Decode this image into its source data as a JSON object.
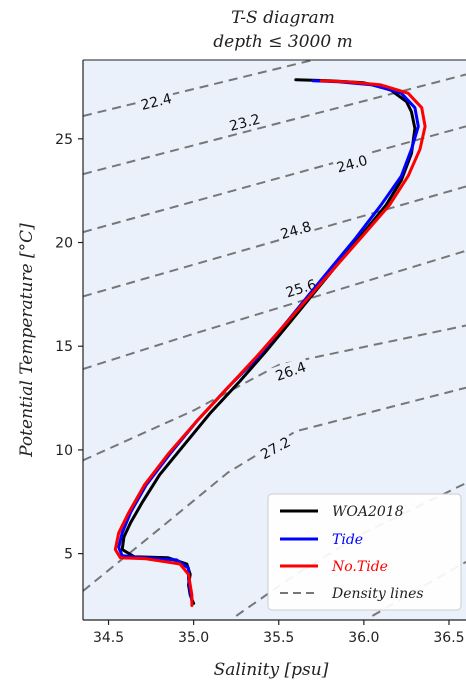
{
  "chart_data": {
    "type": "line",
    "title": "T-S diagram",
    "subtitle": "depth ≤ 3000 m",
    "xlabel": "Salinity [psu]",
    "ylabel": "Potential Temperature [°C]",
    "xlim": [
      34.35,
      36.6
    ],
    "ylim": [
      1.8,
      28.8
    ],
    "xticks": [
      "34.5",
      "35.0",
      "35.5",
      "36.0",
      "36.5"
    ],
    "yticks": [
      "5",
      "10",
      "15",
      "20",
      "25"
    ],
    "grid": false,
    "legend_position": "bottom-right",
    "series": [
      {
        "name": "WOA2018",
        "color": "#000000",
        "points": [
          [
            35.0,
            2.6
          ],
          [
            34.98,
            3.0
          ],
          [
            34.97,
            3.5
          ],
          [
            34.98,
            4.0
          ],
          [
            34.96,
            4.5
          ],
          [
            34.85,
            4.8
          ],
          [
            34.65,
            4.85
          ],
          [
            34.58,
            5.2
          ],
          [
            34.59,
            5.8
          ],
          [
            34.63,
            6.5
          ],
          [
            34.7,
            7.5
          ],
          [
            34.8,
            8.8
          ],
          [
            34.95,
            10.3
          ],
          [
            35.1,
            11.8
          ],
          [
            35.27,
            13.3
          ],
          [
            35.42,
            14.7
          ],
          [
            35.55,
            16.0
          ],
          [
            35.68,
            17.3
          ],
          [
            35.82,
            18.7
          ],
          [
            35.97,
            20.2
          ],
          [
            36.13,
            21.8
          ],
          [
            36.22,
            23.0
          ],
          [
            36.28,
            24.3
          ],
          [
            36.3,
            25.5
          ],
          [
            36.28,
            26.3
          ],
          [
            36.25,
            26.8
          ],
          [
            36.15,
            27.4
          ],
          [
            36.0,
            27.7
          ],
          [
            35.8,
            27.8
          ],
          [
            35.6,
            27.85
          ]
        ]
      },
      {
        "name": "Tide",
        "color": "#0000ff",
        "points": [
          [
            34.99,
            2.7
          ],
          [
            34.98,
            3.2
          ],
          [
            34.97,
            3.8
          ],
          [
            34.97,
            4.3
          ],
          [
            34.9,
            4.7
          ],
          [
            34.7,
            4.8
          ],
          [
            34.58,
            4.9
          ],
          [
            34.56,
            5.3
          ],
          [
            34.58,
            6.0
          ],
          [
            34.63,
            7.0
          ],
          [
            34.72,
            8.3
          ],
          [
            34.86,
            9.8
          ],
          [
            35.02,
            11.4
          ],
          [
            35.2,
            13.0
          ],
          [
            35.38,
            14.5
          ],
          [
            35.52,
            15.9
          ],
          [
            35.66,
            17.3
          ],
          [
            35.8,
            18.7
          ],
          [
            35.95,
            20.2
          ],
          [
            36.1,
            21.8
          ],
          [
            36.22,
            23.2
          ],
          [
            36.28,
            24.5
          ],
          [
            36.32,
            25.6
          ],
          [
            36.3,
            26.5
          ],
          [
            36.22,
            27.2
          ],
          [
            36.05,
            27.6
          ],
          [
            35.85,
            27.75
          ],
          [
            35.7,
            27.8
          ]
        ]
      },
      {
        "name": "No.Tide",
        "color": "#ff0000",
        "points": [
          [
            34.99,
            2.5
          ],
          [
            34.99,
            3.0
          ],
          [
            34.98,
            3.5
          ],
          [
            34.97,
            4.0
          ],
          [
            34.92,
            4.5
          ],
          [
            34.72,
            4.75
          ],
          [
            34.57,
            4.8
          ],
          [
            34.54,
            5.2
          ],
          [
            34.56,
            6.0
          ],
          [
            34.62,
            7.0
          ],
          [
            34.71,
            8.3
          ],
          [
            34.85,
            9.8
          ],
          [
            35.02,
            11.4
          ],
          [
            35.2,
            13.0
          ],
          [
            35.37,
            14.5
          ],
          [
            35.52,
            15.9
          ],
          [
            35.67,
            17.3
          ],
          [
            35.82,
            18.7
          ],
          [
            35.98,
            20.2
          ],
          [
            36.15,
            21.8
          ],
          [
            36.26,
            23.2
          ],
          [
            36.33,
            24.5
          ],
          [
            36.36,
            25.6
          ],
          [
            36.34,
            26.5
          ],
          [
            36.26,
            27.2
          ],
          [
            36.1,
            27.6
          ],
          [
            35.9,
            27.75
          ],
          [
            35.75,
            27.8
          ]
        ]
      }
    ],
    "density_lines": {
      "name": "Density lines",
      "color": "#777777",
      "lines": [
        {
          "label": "22.4",
          "points": [
            [
              34.35,
              26.1
            ],
            [
              36.6,
              30.6
            ]
          ],
          "label_at": [
            34.78,
            26.8
          ]
        },
        {
          "label": "23.2",
          "points": [
            [
              34.35,
              23.3
            ],
            [
              36.6,
              28.1
            ]
          ],
          "label_at": [
            35.3,
            25.8
          ]
        },
        {
          "label": "24.0",
          "points": [
            [
              34.35,
              20.5
            ],
            [
              36.6,
              25.6
            ]
          ],
          "label_at": [
            35.93,
            23.8
          ]
        },
        {
          "label": "24.8",
          "points": [
            [
              34.35,
              17.4
            ],
            [
              36.6,
              22.7
            ]
          ],
          "label_at": [
            35.6,
            20.6
          ]
        },
        {
          "label": "25.6",
          "points": [
            [
              34.35,
              13.9
            ],
            [
              35.0,
              15.6
            ],
            [
              36.6,
              19.6
            ]
          ],
          "label_at": [
            35.63,
            17.8
          ]
        },
        {
          "label": "26.4",
          "points": [
            [
              34.35,
              9.5
            ],
            [
              35.0,
              11.9
            ],
            [
              35.5,
              14.1
            ],
            [
              36.6,
              16.0
            ]
          ],
          "label_at": [
            35.57,
            13.8
          ]
        },
        {
          "label": "27.2",
          "points": [
            [
              34.35,
              3.2
            ],
            [
              34.8,
              6.2
            ],
            [
              35.2,
              8.9
            ],
            [
              35.6,
              10.9
            ],
            [
              36.6,
              13.0
            ]
          ],
          "label_at": [
            35.48,
            10.1
          ]
        },
        {
          "label": "",
          "points": [
            [
              35.25,
              2.0
            ],
            [
              35.6,
              4.0
            ],
            [
              36.0,
              6.0
            ],
            [
              36.6,
              8.4
            ]
          ]
        },
        {
          "label": "",
          "points": [
            [
              36.05,
              2.0
            ],
            [
              36.6,
              4.6
            ]
          ]
        }
      ]
    }
  }
}
